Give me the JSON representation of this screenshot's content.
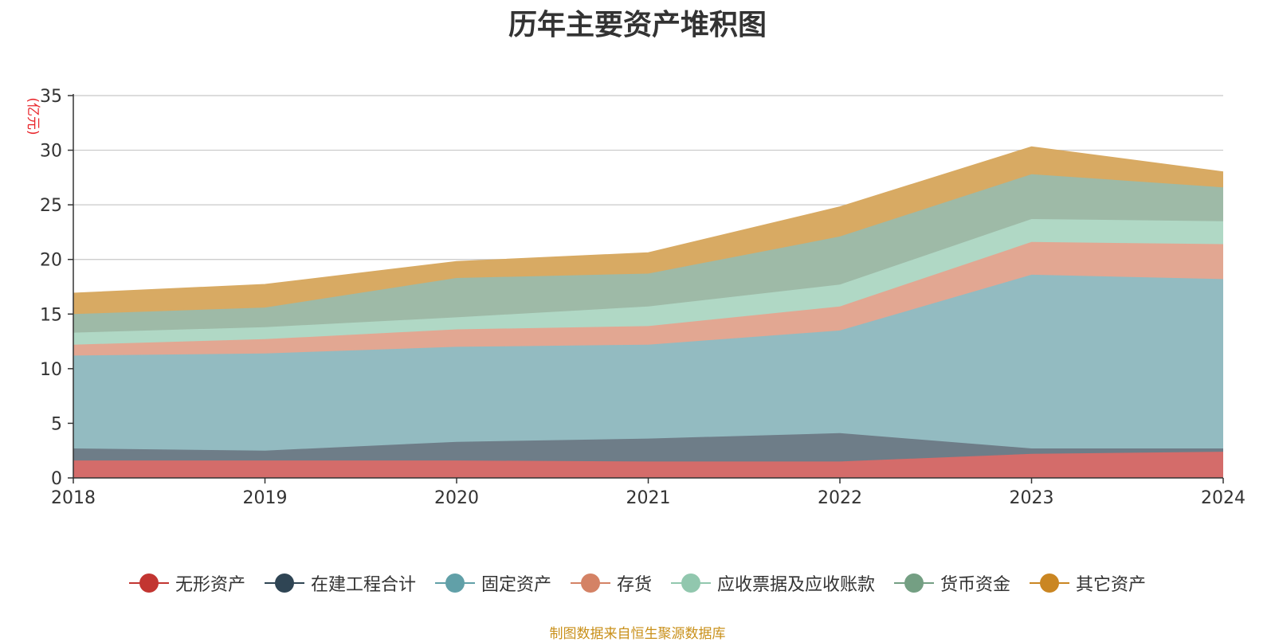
{
  "chart_data": {
    "type": "area",
    "title": "历年主要资产堆积图",
    "ylabel": "(亿元)",
    "xlabel": "",
    "x": [
      "2018",
      "2019",
      "2020",
      "2021",
      "2022",
      "2023",
      "2024"
    ],
    "ylim": [
      0,
      35
    ],
    "yticks": [
      0,
      5,
      10,
      15,
      20,
      25,
      30,
      35
    ],
    "stacked": true,
    "grid": true,
    "legend_position": "bottom",
    "series": [
      {
        "name": "无形资产",
        "color": "#c23531",
        "area_color": "#d46c6a",
        "values": [
          1.6,
          1.6,
          1.6,
          1.5,
          1.5,
          2.2,
          2.4
        ]
      },
      {
        "name": "在建工程合计",
        "color": "#2f4554",
        "area_color": "#6e7d88",
        "values": [
          1.1,
          0.9,
          1.7,
          2.1,
          2.6,
          0.5,
          0.3
        ]
      },
      {
        "name": "固定资产",
        "color": "#61a0a8",
        "area_color": "#93bbc1",
        "values": [
          8.5,
          8.9,
          8.7,
          8.6,
          9.4,
          15.9,
          15.5
        ]
      },
      {
        "name": "存货",
        "color": "#d48265",
        "area_color": "#e2a792",
        "values": [
          1.0,
          1.3,
          1.6,
          1.7,
          2.2,
          3.0,
          3.2
        ]
      },
      {
        "name": "应收票据及应收账款",
        "color": "#91c7ae",
        "area_color": "#b0d8c5",
        "values": [
          1.1,
          1.1,
          1.1,
          1.8,
          2.0,
          2.1,
          2.1
        ]
      },
      {
        "name": "货币资金",
        "color": "#749f83",
        "area_color": "#9ebaa7",
        "values": [
          1.7,
          1.8,
          3.6,
          3.0,
          4.4,
          4.1,
          3.1
        ]
      },
      {
        "name": "其它资产",
        "color": "#ca8622",
        "area_color": "#d8aa63",
        "values": [
          1.9,
          2.1,
          1.5,
          1.9,
          2.7,
          2.5,
          1.4
        ]
      }
    ]
  },
  "footer": {
    "source": "制图数据来自恒生聚源数据库"
  }
}
